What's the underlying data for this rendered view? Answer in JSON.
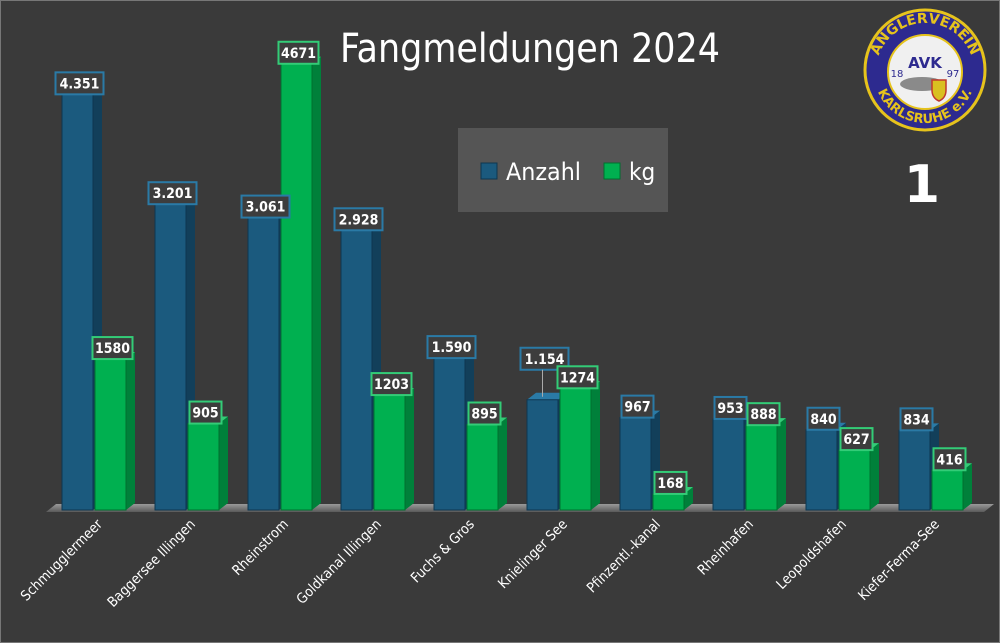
{
  "chart_data": {
    "type": "bar",
    "title": "Fangmeldungen 2024",
    "categories": [
      "Schmugglermeer",
      "Baggersee Illingen",
      "Rheinstrom",
      "Goldkanal Illingen",
      "Fuchs & Gros",
      "Knielinger See",
      "Pfinzentl.-kanal",
      "Rheinhafen",
      "Leopoldshafen",
      "Kiefer-Ferma-See"
    ],
    "series": [
      {
        "name": "Anzahl",
        "values": [
          4351,
          3201,
          3061,
          2928,
          1590,
          1154,
          967,
          953,
          840,
          834
        ],
        "labels": [
          "4.351",
          "3.201",
          "3.061",
          "2.928",
          "1.590",
          "1.154",
          "967",
          "953",
          "840",
          "834"
        ]
      },
      {
        "name": "kg",
        "values": [
          1580,
          905,
          4671,
          1203,
          895,
          1274,
          168,
          888,
          627,
          416
        ],
        "labels": [
          "1580",
          "905",
          "4671",
          "1203",
          "895",
          "1274",
          "168",
          "888",
          "627",
          "416"
        ]
      }
    ],
    "ylim": [
      0,
      4700
    ],
    "grid": false,
    "legend": "top-center",
    "colors": {
      "Anzahl": "#1b5a7e",
      "kg": "#00b050",
      "background": "#3a3a3a"
    }
  },
  "logo": {
    "top_text": "ANGLERVEREIN",
    "bottom_text": "KARLSRUHE e.V.",
    "monogram": "AVK",
    "year_left": "18",
    "year_right": "97"
  },
  "page_number": "1"
}
